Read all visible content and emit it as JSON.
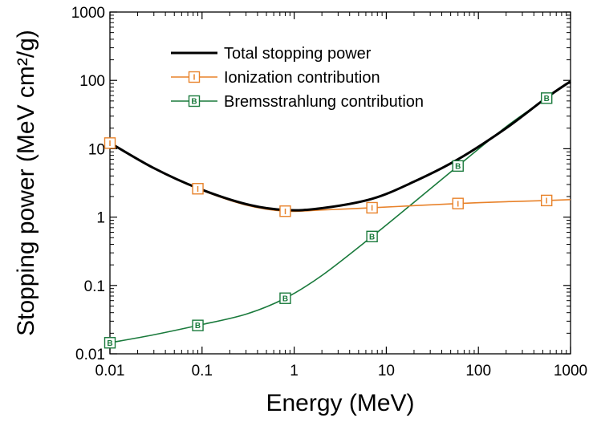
{
  "chart_data": {
    "type": "line",
    "xlabel": "Energy (MeV)",
    "ylabel": "Stopping power (MeV cm²/g)",
    "xscale": "log",
    "yscale": "log",
    "xlim": [
      0.01,
      1000
    ],
    "ylim": [
      0.01,
      1000
    ],
    "xticks": [
      "0.01",
      "0.1",
      "1",
      "10",
      "100",
      "1000"
    ],
    "yticks": [
      "0.01",
      "0.1",
      "1",
      "10",
      "100",
      "1000"
    ],
    "grid": false,
    "legend_position": "top-center",
    "series": [
      {
        "name": "Total stopping power",
        "color": "#000000",
        "marker": "",
        "x": [
          0.01,
          0.03,
          0.09,
          0.3,
          0.8,
          2,
          7,
          20,
          60,
          200,
          550,
          1000
        ],
        "y": [
          12.2,
          5.2,
          2.65,
          1.55,
          1.27,
          1.35,
          1.85,
          3.3,
          7.0,
          20,
          56,
          97
        ]
      },
      {
        "name": "Ionization contribution",
        "color": "#e8822a",
        "marker": "I",
        "x": [
          0.01,
          0.03,
          0.09,
          0.3,
          0.8,
          2,
          7,
          20,
          60,
          200,
          550,
          1000
        ],
        "y": [
          12.1,
          5.15,
          2.6,
          1.5,
          1.22,
          1.27,
          1.37,
          1.47,
          1.58,
          1.68,
          1.75,
          1.8
        ],
        "marker_x": [
          0.01,
          0.09,
          0.8,
          7,
          60,
          550
        ]
      },
      {
        "name": "Bremsstrahlung contribution",
        "color": "#1a7a3c",
        "marker": "B",
        "x": [
          0.01,
          0.03,
          0.09,
          0.3,
          0.8,
          2,
          7,
          20,
          60,
          200,
          550,
          1000
        ],
        "y": [
          0.0145,
          0.019,
          0.026,
          0.038,
          0.065,
          0.14,
          0.52,
          1.65,
          5.6,
          21,
          55,
          97
        ],
        "marker_x": [
          0.01,
          0.09,
          0.8,
          7,
          60,
          550
        ]
      }
    ]
  }
}
